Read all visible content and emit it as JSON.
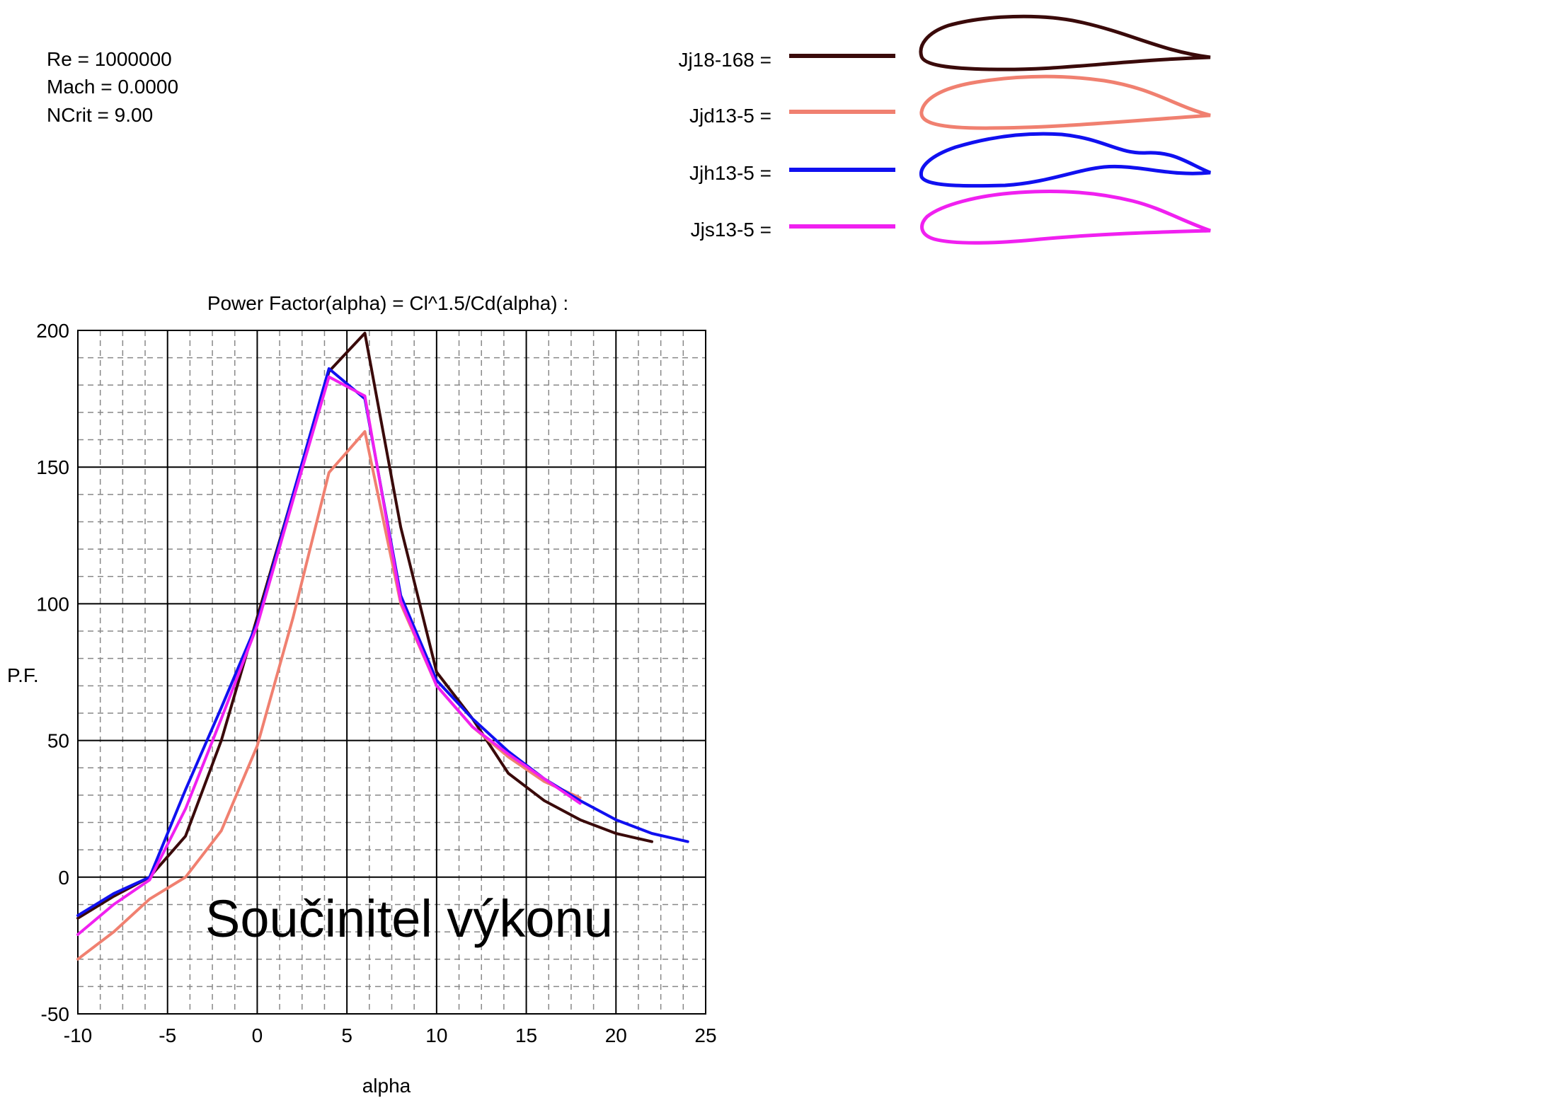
{
  "params": {
    "re": "Re = 1000000",
    "mach": "Mach = 0.0000",
    "ncrit": "NCrit = 9.00"
  },
  "airfoils": [
    {
      "label": "Jj18-168 =",
      "color": "#3a0a0a"
    },
    {
      "label": "Jjd13-5 =",
      "color": "#f08070"
    },
    {
      "label": "Jjh13-5 =",
      "color": "#1010f0"
    },
    {
      "label": "Jjs13-5 =",
      "color": "#f020f0"
    }
  ],
  "overlay_text": "Součinitel výkonu",
  "chart_data": {
    "type": "line",
    "title": "Power Factor(alpha) = Cl^1.5/Cd(alpha) :",
    "xlabel": "alpha",
    "ylabel": "P.F.",
    "xlim": [
      -10,
      25
    ],
    "ylim": [
      -50,
      200
    ],
    "x_ticks": [
      -10,
      -5,
      0,
      5,
      10,
      15,
      20,
      25
    ],
    "y_ticks": [
      -50,
      0,
      50,
      100,
      150,
      200
    ],
    "grid": true,
    "series": [
      {
        "name": "Jj18-168",
        "color": "#3a0a0a",
        "points": [
          [
            -10,
            -15
          ],
          [
            -8,
            -7
          ],
          [
            -6,
            0
          ],
          [
            -4,
            15
          ],
          [
            -2,
            50
          ],
          [
            0,
            95
          ],
          [
            2,
            140
          ],
          [
            4,
            185
          ],
          [
            6,
            199
          ],
          [
            8,
            128
          ],
          [
            10,
            75
          ],
          [
            12,
            58
          ],
          [
            14,
            38
          ],
          [
            16,
            28
          ],
          [
            18,
            21
          ],
          [
            20,
            16
          ],
          [
            22,
            13
          ]
        ]
      },
      {
        "name": "Jjd13-5",
        "color": "#f08070",
        "points": [
          [
            -10,
            -30
          ],
          [
            -8,
            -20
          ],
          [
            -6,
            -8
          ],
          [
            -4,
            0
          ],
          [
            -2,
            17
          ],
          [
            0,
            48
          ],
          [
            2,
            95
          ],
          [
            4,
            148
          ],
          [
            6,
            163
          ],
          [
            8,
            100
          ],
          [
            10,
            70
          ],
          [
            12,
            55
          ],
          [
            14,
            44
          ],
          [
            16,
            35
          ],
          [
            18,
            29
          ]
        ]
      },
      {
        "name": "Jjh13-5",
        "color": "#1010f0",
        "points": [
          [
            -10,
            -14
          ],
          [
            -8,
            -6
          ],
          [
            -6,
            0
          ],
          [
            -4,
            32
          ],
          [
            -2,
            62
          ],
          [
            0,
            93
          ],
          [
            2,
            140
          ],
          [
            4,
            186
          ],
          [
            6,
            175
          ],
          [
            8,
            103
          ],
          [
            10,
            72
          ],
          [
            12,
            58
          ],
          [
            14,
            46
          ],
          [
            16,
            36
          ],
          [
            18,
            28
          ],
          [
            20,
            21
          ],
          [
            22,
            16
          ],
          [
            24,
            13
          ]
        ]
      },
      {
        "name": "Jjs13-5",
        "color": "#f020f0",
        "points": [
          [
            -10,
            -21
          ],
          [
            -8,
            -10
          ],
          [
            -6,
            -1
          ],
          [
            -4,
            25
          ],
          [
            -2,
            58
          ],
          [
            0,
            92
          ],
          [
            2,
            138
          ],
          [
            4,
            183
          ],
          [
            6,
            176
          ],
          [
            8,
            101
          ],
          [
            10,
            70
          ],
          [
            12,
            55
          ],
          [
            14,
            45
          ],
          [
            16,
            36
          ],
          [
            18,
            27
          ]
        ]
      }
    ]
  }
}
